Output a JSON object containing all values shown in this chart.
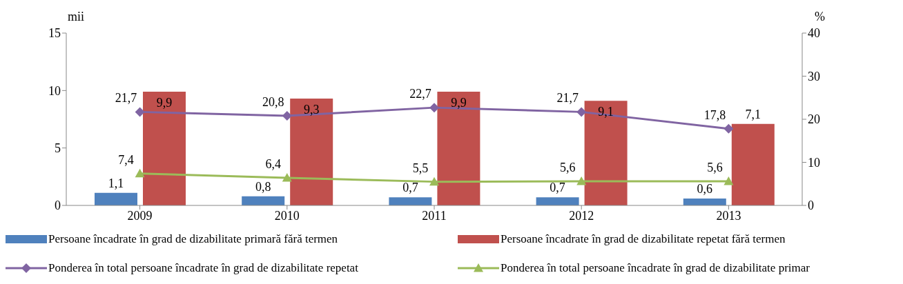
{
  "chart_data": {
    "type": "bar",
    "categories": [
      "2009",
      "2010",
      "2011",
      "2012",
      "2013"
    ],
    "ylabel": "mii",
    "y2label": "%",
    "ylim": [
      0,
      15
    ],
    "yticks": [
      0,
      5,
      10,
      15
    ],
    "y2lim": [
      0,
      40
    ],
    "y2ticks": [
      0,
      10,
      20,
      30,
      40
    ],
    "grid": false,
    "legend": "bottom",
    "series": [
      {
        "name": "Persoane încadrate în grad de dizabilitate primară fără termen",
        "color": "#4f81bd",
        "values": [
          1.1,
          0.8,
          0.7,
          0.7,
          0.6
        ],
        "value_labels": [
          "1,1",
          "0,8",
          "0,7",
          "0,7",
          "0,6"
        ]
      },
      {
        "name": "Persoane încadrate în grad de dizabilitate repetat fără termen",
        "color": "#c0504d",
        "values": [
          9.9,
          9.3,
          9.9,
          9.1,
          7.1
        ],
        "value_labels": [
          "9,9",
          "9,3",
          "9,9",
          "9,1",
          "7,1"
        ]
      },
      {
        "name": "Ponderea în total persoane încadrate în grad de dizabilitate repetat",
        "type": "line",
        "axis": "y2",
        "marker": "diamond",
        "color": "#8064a2",
        "values": [
          21.7,
          20.8,
          22.7,
          21.7,
          17.8
        ],
        "value_labels": [
          "21,7",
          "20,8",
          "22,7",
          "21,7",
          "17,8"
        ]
      },
      {
        "name": "Ponderea în total persoane încadrate în grad de dizabilitate primar",
        "type": "line",
        "axis": "y2",
        "marker": "triangle",
        "color": "#9bbb59",
        "values": [
          7.4,
          6.4,
          5.5,
          5.6,
          5.6
        ],
        "value_labels": [
          "7,4",
          "6,4",
          "5,5",
          "5,6",
          "5,6"
        ]
      }
    ]
  }
}
